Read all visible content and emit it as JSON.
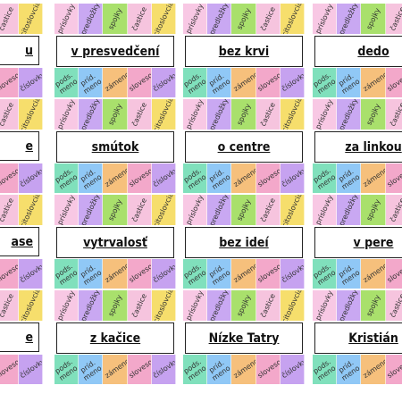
{
  "top_labels": [
    "príslovky",
    "predložky",
    "spojky",
    "častice",
    "citoslovcia"
  ],
  "bottom_labels": [
    "pods. meno",
    "príd. meno",
    "zámeno",
    "sloveso",
    "číslovky"
  ],
  "cards": [
    [
      "u",
      "v presvedčení",
      "bez krvi",
      "dedo"
    ],
    [
      "e",
      "smútok",
      "o centre",
      "za linkou"
    ],
    [
      "ase",
      "vytrvalosť",
      "bez ideí",
      "v pere"
    ],
    [
      "e",
      "z kačice",
      "Nízke Tatry",
      "Kristián"
    ]
  ]
}
